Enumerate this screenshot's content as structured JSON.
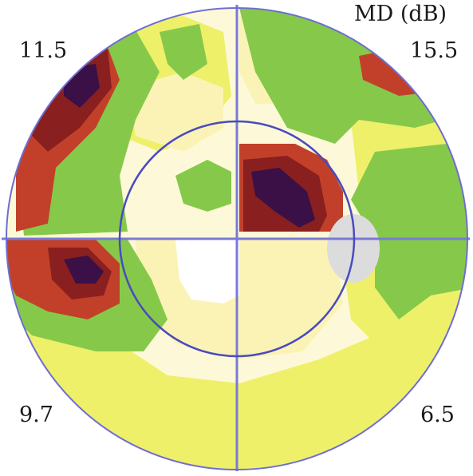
{
  "header": {
    "label": "MD (dB)"
  },
  "quadrants": {
    "upper_left": {
      "md": "11.5"
    },
    "upper_right": {
      "md": "15.5"
    },
    "lower_left": {
      "md": "9.7"
    },
    "lower_right": {
      "md": "6.5"
    }
  },
  "colors": {
    "background": "#ffffff",
    "outline": "#6e6ed2",
    "axis": "#7a7ad6",
    "inner_ring": "#4a4ac0",
    "blind_spot": "#dcdcdc",
    "light_yellow": "#fbf3b6",
    "pale_yellow": "#fdf9d8",
    "yellow": "#eef06a",
    "green": "#86c94a",
    "red": "#c2402a",
    "dark_red": "#8a1f1f",
    "deep_purple": "#3a1046"
  }
}
